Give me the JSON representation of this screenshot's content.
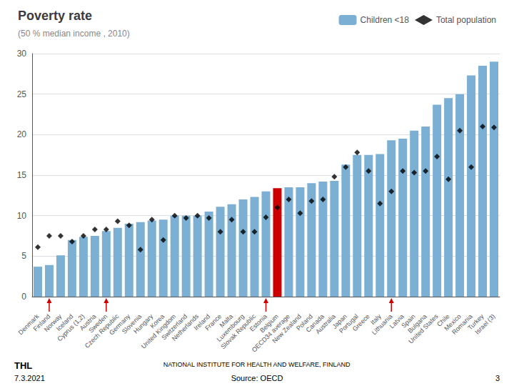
{
  "chart_data": {
    "type": "bar",
    "title": "Poverty rate",
    "subtitle": "(50 % median income , 2010)",
    "categories": [
      "Denmark",
      "Finland",
      "Norway",
      "Iceland",
      "Cyprus (1,2)",
      "Austria",
      "Sweden",
      "Czech Republic",
      "Germany",
      "Slovenia",
      "Hungary",
      "Korea",
      "United Kingdom",
      "Switzerland",
      "Netherlands",
      "Ireland",
      "France",
      "Malta",
      "Luxembourg",
      "Slovak Republic",
      "Estonia",
      "Belgium",
      "OECD34 average",
      "New Zealand",
      "Poland",
      "Canada",
      "Australia",
      "Japan",
      "Portugal",
      "Greece",
      "Italy",
      "Lithuania",
      "Latvia",
      "Spain",
      "Bulgaria",
      "United States",
      "Chile",
      "Mexico",
      "Romania",
      "Turkey",
      "Israel (3)"
    ],
    "series": [
      {
        "name": "Children <18",
        "type": "bar",
        "color": "#7bafd4",
        "colors": [
          "#7bafd4",
          "#7bafd4",
          "#7bafd4",
          "#7bafd4",
          "#7bafd4",
          "#7bafd4",
          "#7bafd4",
          "#7bafd4",
          "#7bafd4",
          "#7bafd4",
          "#7bafd4",
          "#7bafd4",
          "#7bafd4",
          "#7bafd4",
          "#7bafd4",
          "#7bafd4",
          "#7bafd4",
          "#7bafd4",
          "#7bafd4",
          "#7bafd4",
          "#7bafd4",
          "#cc0000",
          "#7bafd4",
          "#7bafd4",
          "#7bafd4",
          "#7bafd4",
          "#7bafd4",
          "#7bafd4",
          "#7bafd4",
          "#7bafd4",
          "#7bafd4",
          "#7bafd4",
          "#7bafd4",
          "#7bafd4",
          "#7bafd4",
          "#7bafd4",
          "#7bafd4",
          "#7bafd4",
          "#7bafd4",
          "#7bafd4",
          "#7bafd4"
        ],
        "values": [
          3.7,
          3.9,
          5.1,
          7.0,
          7.4,
          7.5,
          8.1,
          8.5,
          9.0,
          9.2,
          9.4,
          9.5,
          10.0,
          10.0,
          10.0,
          10.5,
          11.1,
          11.4,
          12.0,
          12.3,
          13.0,
          13.4,
          13.5,
          13.5,
          14.0,
          14.2,
          14.3,
          16.3,
          17.5,
          17.5,
          17.6,
          19.3,
          19.5,
          20.5,
          21.0,
          23.7,
          24.5,
          25.0,
          27.3,
          28.5,
          29.0
        ]
      },
      {
        "name": "Total population",
        "type": "scatter",
        "color": "#000000",
        "marker": "diamond",
        "values": [
          6.1,
          7.5,
          7.5,
          6.8,
          7.5,
          8.3,
          8.3,
          9.3,
          8.8,
          5.8,
          9.5,
          7.0,
          10.0,
          9.7,
          10.0,
          9.7,
          8.0,
          9.5,
          8.0,
          8.0,
          9.8,
          11.0,
          12.0,
          10.3,
          11.8,
          12.0,
          14.8,
          16.0,
          17.8,
          15.5,
          11.5,
          13.0,
          15.5,
          15.3,
          15.5,
          17.3,
          14.5,
          20.5,
          16.0,
          21.0,
          20.9
        ]
      }
    ],
    "ylim": [
      0,
      30
    ],
    "yticks": [
      0,
      5,
      10,
      15,
      20,
      25,
      30
    ],
    "grid": true,
    "legend": "top",
    "arrows": {
      "categories": [
        "Finland",
        "Sweden",
        "Estonia",
        "Lithuania"
      ],
      "color": "#cc0000"
    },
    "logo": "THL",
    "institute": "NATIONAL INSTITUTE FOR HEALTH AND WELFARE, FINLAND",
    "footer": {
      "left": "7.3.2021",
      "center": "Source: OECD",
      "right": "3"
    }
  }
}
